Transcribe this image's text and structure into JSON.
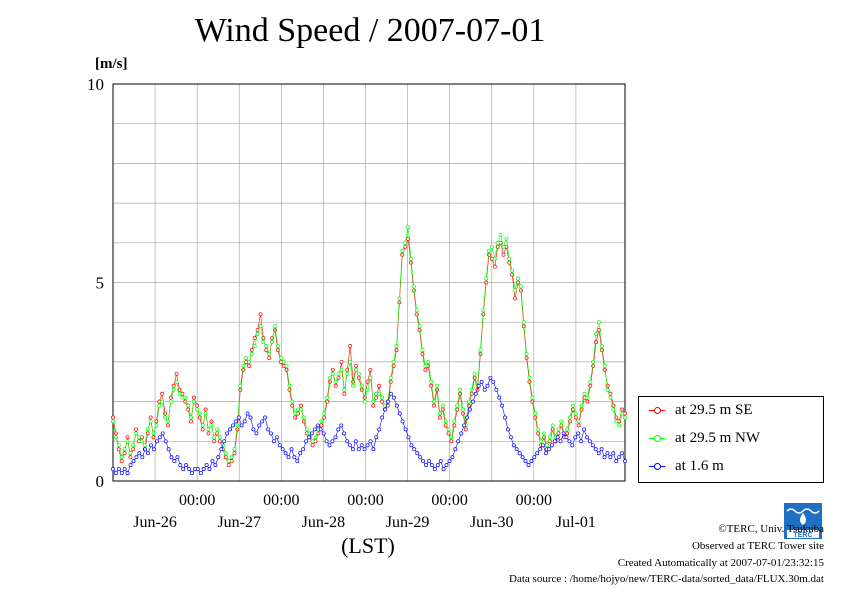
{
  "header": {
    "title": "Wind Speed / 2007-07-01",
    "y_unit": "[m/s]"
  },
  "chart_data": {
    "type": "line",
    "title": "Wind Speed / 2007-07-01",
    "ylabel": "[m/s]",
    "xlabel": "(LST)",
    "ylim": [
      0,
      10
    ],
    "xlim_hours": [
      0,
      146
    ],
    "yticks": [
      "0",
      "5",
      "10"
    ],
    "xtick_time_labels": [
      "00:00",
      "00:00",
      "00:00",
      "00:00",
      "00:00"
    ],
    "xtick_date_labels": [
      "Jun-26",
      "Jun-27",
      "Jun-28",
      "Jun-29",
      "Jun-30",
      "Jul-01"
    ],
    "grid": true,
    "legend_position": "right",
    "series": [
      {
        "name": "at 29.5 m SE",
        "color": "#ff0000",
        "values": [
          1.6,
          1.2,
          0.8,
          0.5,
          0.7,
          1.1,
          0.6,
          0.8,
          1.3,
          1.0,
          1.1,
          0.8,
          1.2,
          1.6,
          1.1,
          1.5,
          2.0,
          2.2,
          1.7,
          1.4,
          2.1,
          2.4,
          2.7,
          2.3,
          2.2,
          2.0,
          1.8,
          1.5,
          2.1,
          1.9,
          1.6,
          1.3,
          1.8,
          1.2,
          1.5,
          1.0,
          1.2,
          1.0,
          0.8,
          0.6,
          0.4,
          0.5,
          0.7,
          1.3,
          2.3,
          2.8,
          3.0,
          2.9,
          3.3,
          3.6,
          3.8,
          4.2,
          3.6,
          3.3,
          3.1,
          3.6,
          3.8,
          3.3,
          3.0,
          2.9,
          2.8,
          2.3,
          1.9,
          1.6,
          1.7,
          1.9,
          1.5,
          1.2,
          1.1,
          0.9,
          1.0,
          1.2,
          1.4,
          1.6,
          2.0,
          2.5,
          2.8,
          2.4,
          2.6,
          3.0,
          2.2,
          2.8,
          3.4,
          2.5,
          2.9,
          2.6,
          2.3,
          2.1,
          2.5,
          2.8,
          1.9,
          2.1,
          2.4,
          2.0,
          1.8,
          1.9,
          2.5,
          2.9,
          3.3,
          4.5,
          5.7,
          5.9,
          6.1,
          5.5,
          4.8,
          4.2,
          3.8,
          3.2,
          2.8,
          2.9,
          2.4,
          1.9,
          2.3,
          1.6,
          1.8,
          1.4,
          1.2,
          1.0,
          1.4,
          1.8,
          2.2,
          1.7,
          1.3,
          1.9,
          2.2,
          2.6,
          2.3,
          3.2,
          4.2,
          5.0,
          5.7,
          5.6,
          5.4,
          5.9,
          6.0,
          5.7,
          5.9,
          5.5,
          5.2,
          4.6,
          5.0,
          4.8,
          3.9,
          3.1,
          2.5,
          2.0,
          1.6,
          1.2,
          0.9,
          1.1,
          0.8,
          1.0,
          1.3,
          1.0,
          1.2,
          1.4,
          1.1,
          1.2,
          1.5,
          1.8,
          1.6,
          1.4,
          1.8,
          2.1,
          2.0,
          2.4,
          2.9,
          3.5,
          3.8,
          3.3,
          2.8,
          2.4,
          2.2,
          1.9,
          1.6,
          1.5,
          1.8,
          1.7
        ]
      },
      {
        "name": "at 29.5 m NW",
        "color": "#00ff00",
        "values": [
          1.5,
          1.1,
          0.9,
          0.6,
          0.8,
          1.0,
          0.7,
          0.9,
          1.2,
          1.1,
          1.0,
          0.9,
          1.3,
          1.5,
          1.2,
          1.4,
          1.9,
          2.0,
          1.6,
          1.5,
          2.0,
          2.3,
          2.5,
          2.2,
          2.1,
          2.1,
          1.9,
          1.6,
          2.0,
          1.8,
          1.7,
          1.4,
          1.7,
          1.3,
          1.4,
          1.1,
          1.3,
          1.1,
          0.9,
          0.7,
          0.5,
          0.6,
          0.8,
          1.4,
          2.4,
          2.9,
          3.1,
          3.0,
          3.2,
          3.4,
          3.7,
          3.9,
          3.5,
          3.4,
          3.2,
          3.5,
          3.9,
          3.4,
          3.1,
          3.0,
          2.9,
          2.4,
          2.0,
          1.7,
          1.8,
          1.8,
          1.6,
          1.3,
          1.2,
          1.0,
          1.1,
          1.3,
          1.5,
          1.7,
          2.1,
          2.6,
          2.7,
          2.5,
          2.7,
          2.8,
          2.3,
          2.7,
          3.0,
          2.4,
          2.8,
          2.7,
          2.4,
          2.0,
          2.3,
          2.6,
          2.0,
          2.2,
          2.2,
          2.1,
          1.9,
          2.0,
          2.6,
          3.0,
          3.4,
          4.6,
          5.8,
          6.0,
          6.4,
          5.6,
          4.9,
          4.3,
          3.9,
          3.3,
          2.9,
          3.0,
          2.5,
          2.0,
          2.4,
          1.7,
          1.9,
          1.5,
          1.3,
          1.1,
          1.5,
          1.9,
          2.3,
          1.8,
          1.4,
          2.0,
          2.3,
          2.7,
          2.4,
          3.3,
          4.3,
          5.1,
          5.8,
          5.9,
          5.6,
          6.0,
          6.2,
          5.9,
          6.1,
          5.6,
          5.3,
          4.8,
          5.1,
          4.9,
          4.0,
          3.2,
          2.6,
          2.1,
          1.7,
          1.3,
          1.0,
          1.2,
          0.9,
          1.1,
          1.4,
          1.1,
          1.3,
          1.5,
          1.2,
          1.3,
          1.6,
          1.9,
          1.7,
          1.5,
          1.9,
          2.2,
          2.1,
          2.5,
          3.0,
          3.7,
          4.0,
          3.4,
          2.9,
          2.3,
          2.1,
          1.8,
          1.5,
          1.4,
          1.7,
          1.6
        ]
      },
      {
        "name": "at 1.6 m",
        "color": "#0000ff",
        "values": [
          0.3,
          0.2,
          0.3,
          0.2,
          0.3,
          0.2,
          0.4,
          0.5,
          0.6,
          0.7,
          0.6,
          0.8,
          0.7,
          0.9,
          0.8,
          1.0,
          1.1,
          1.2,
          1.0,
          0.8,
          0.6,
          0.5,
          0.6,
          0.4,
          0.3,
          0.4,
          0.3,
          0.2,
          0.3,
          0.3,
          0.2,
          0.3,
          0.4,
          0.3,
          0.5,
          0.4,
          0.6,
          0.8,
          1.0,
          1.2,
          1.3,
          1.4,
          1.5,
          1.6,
          1.4,
          1.5,
          1.7,
          1.6,
          1.3,
          1.2,
          1.4,
          1.5,
          1.6,
          1.3,
          1.2,
          1.0,
          1.1,
          0.9,
          0.8,
          0.7,
          0.6,
          0.8,
          0.6,
          0.5,
          0.7,
          0.8,
          1.0,
          1.1,
          1.2,
          1.3,
          1.4,
          1.3,
          1.2,
          1.0,
          0.9,
          1.0,
          1.1,
          1.3,
          1.4,
          1.2,
          1.0,
          0.9,
          0.8,
          1.0,
          0.8,
          0.9,
          0.8,
          0.9,
          1.0,
          0.8,
          1.1,
          1.3,
          1.6,
          1.8,
          2.0,
          2.2,
          2.1,
          1.9,
          1.7,
          1.5,
          1.3,
          1.1,
          0.9,
          0.8,
          0.7,
          0.6,
          0.5,
          0.4,
          0.5,
          0.4,
          0.3,
          0.4,
          0.5,
          0.3,
          0.4,
          0.5,
          0.6,
          0.8,
          1.0,
          1.2,
          1.4,
          1.6,
          1.8,
          2.0,
          2.2,
          2.4,
          2.5,
          2.3,
          2.4,
          2.6,
          2.5,
          2.3,
          2.1,
          1.9,
          1.6,
          1.3,
          1.1,
          0.9,
          0.8,
          0.7,
          0.6,
          0.5,
          0.4,
          0.5,
          0.6,
          0.7,
          0.8,
          0.9,
          0.7,
          0.8,
          0.9,
          1.0,
          1.1,
          1.0,
          1.2,
          1.1,
          1.0,
          0.9,
          1.1,
          1.2,
          1.0,
          1.3,
          1.1,
          1.0,
          0.9,
          0.8,
          0.7,
          0.8,
          0.6,
          0.7,
          0.6,
          0.7,
          0.5,
          0.6,
          0.7,
          0.5
        ]
      }
    ]
  },
  "logo": {
    "text": "TERC"
  },
  "footer": {
    "copyright": "©TERC, Univ. Tsukuba",
    "site": "Observed at TERC Tower site",
    "created": "Created Automatically at 2007-07-01/23:32:15",
    "source": "Data source : /home/hojyo/new/TERC-data/sorted_data/FLUX.30m.dat"
  },
  "colors": {
    "se": "#ff0000",
    "nw": "#00ff00",
    "low": "#0000ff",
    "grid": "#aaaaaa",
    "logo": "#1f6fc2"
  }
}
